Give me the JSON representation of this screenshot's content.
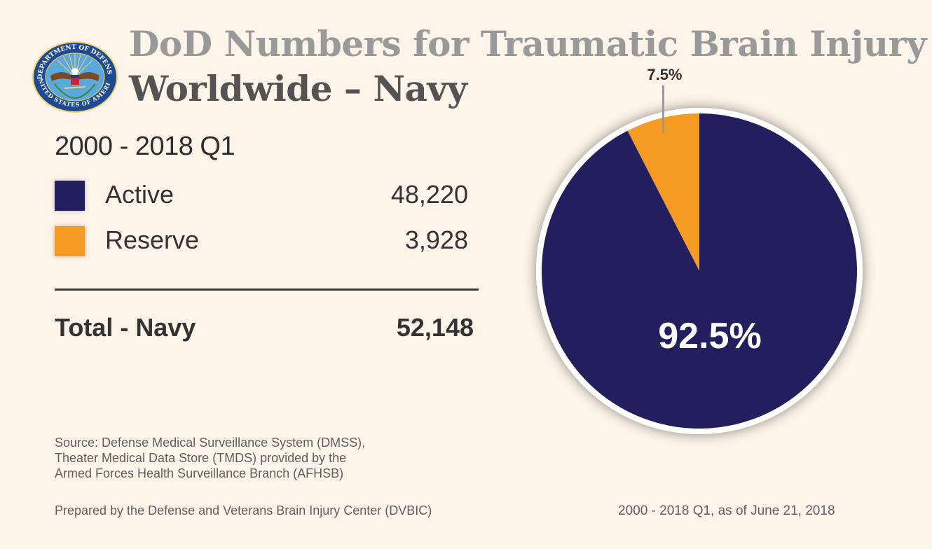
{
  "header": {
    "title_line1": "DoD Numbers for Traumatic Brain Injury",
    "title_line2": "Worldwide – Navy",
    "logo": "department-of-defense-seal",
    "seal_text_top": "DEPARTMENT OF DEFENSE",
    "seal_text_bottom": "UNITED STATES OF AMERICA"
  },
  "summary": {
    "period": "2000 - 2018 Q1",
    "rows": [
      {
        "label": "Active",
        "value": "48,220",
        "color": "#231f5f"
      },
      {
        "label": "Reserve",
        "value": "3,928",
        "color": "#f59a23"
      }
    ],
    "total_label": "Total - Navy",
    "total_value": "52,148"
  },
  "footer": {
    "source_lines": [
      "Source: Defense Medical Surveillance System (DMSS),",
      "Theater Medical Data Store (TMDS) provided by the",
      "Armed Forces Health Surveillance Branch (AFHSB)"
    ],
    "prepared_by": "Prepared by the Defense and Veterans Brain Injury Center (DVBIC)",
    "as_of": "2000 - 2018 Q1, as of June 21, 2018"
  },
  "colors": {
    "background": "#fef4e9",
    "active": "#231f5f",
    "reserve": "#f59a23",
    "title_gray": "#999999",
    "title_dark": "#555352"
  },
  "chart_data": {
    "type": "pie",
    "title": "DoD Numbers for Traumatic Brain Injury Worldwide – Navy",
    "subtitle": "2000 - 2018 Q1",
    "start": "top",
    "direction": "counterclockwise-for-first-slice",
    "slices": [
      {
        "name": "Reserve",
        "value": 3928,
        "percent": 7.5,
        "label": "7.5%",
        "color": "#f59a23",
        "label_position": "outside-top-with-leader"
      },
      {
        "name": "Active",
        "value": 48220,
        "percent": 92.5,
        "label": "92.5%",
        "color": "#231f5f",
        "label_position": "inside"
      }
    ],
    "total": 52148,
    "legend": "left"
  }
}
